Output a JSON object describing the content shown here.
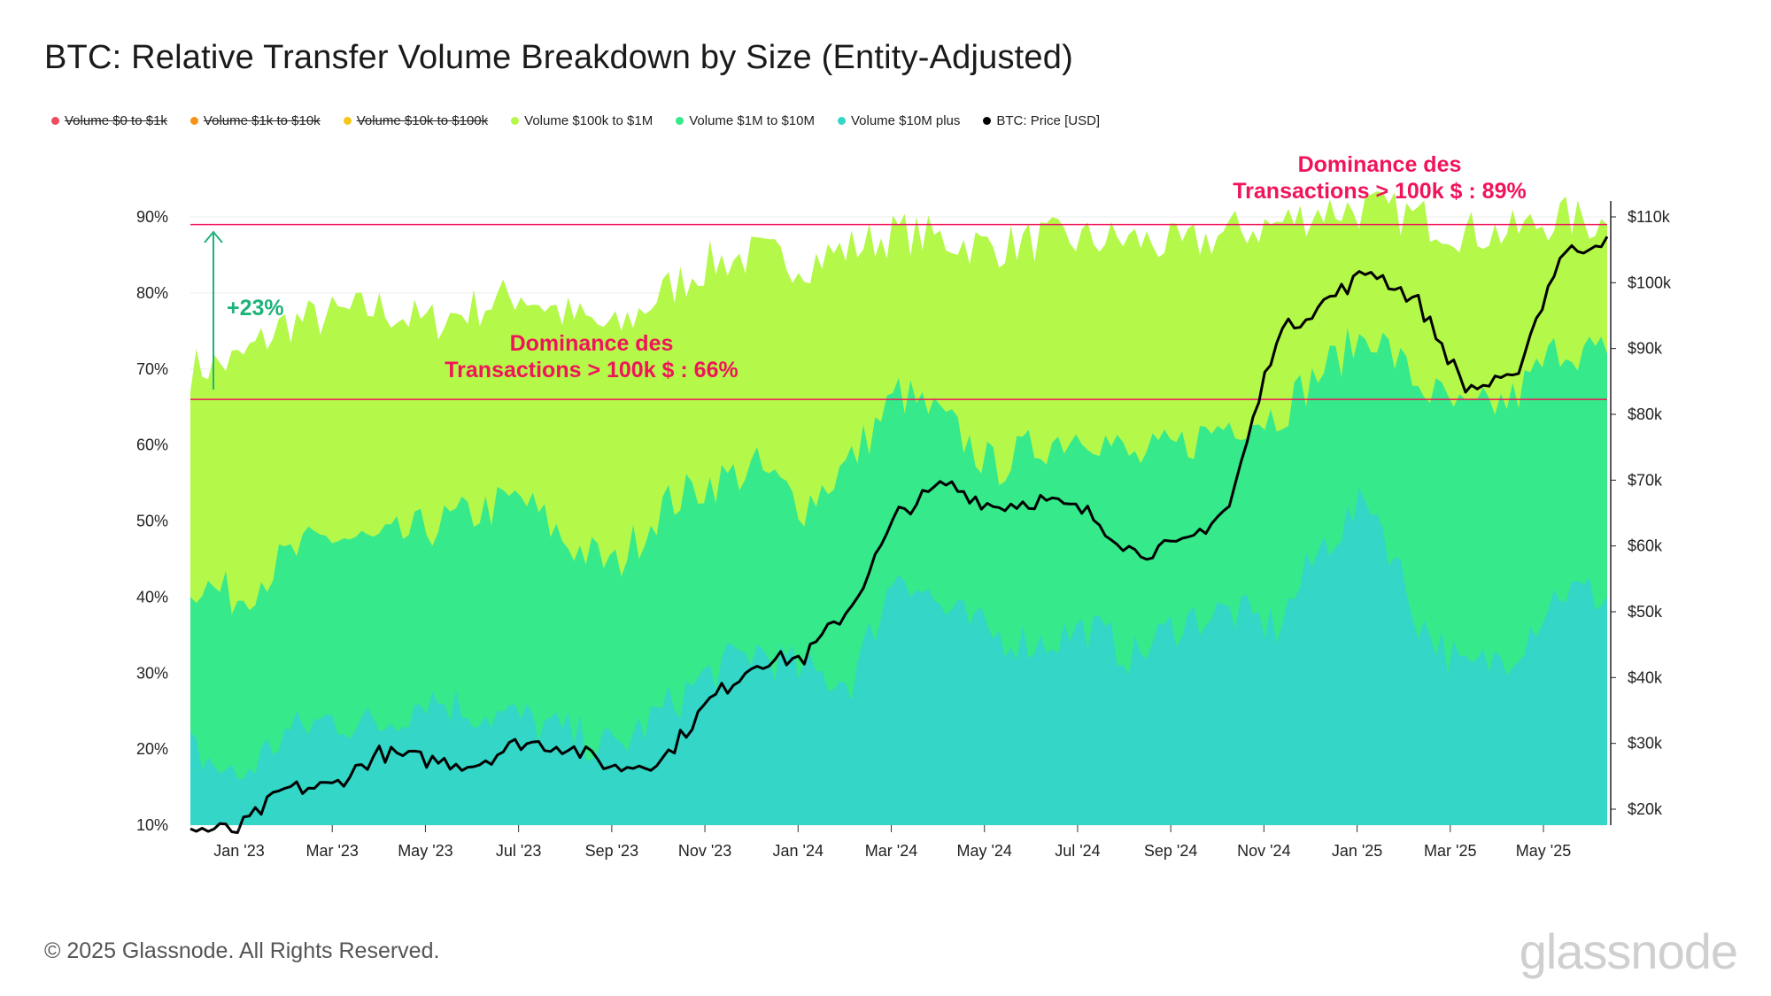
{
  "title": "BTC: Relative Transfer Volume Breakdown by Size (Entity-Adjusted)",
  "legend": [
    {
      "label": "Volume $0 to $1k",
      "color": "#ef4a5f",
      "enabled": false
    },
    {
      "label": "Volume $1k to $10k",
      "color": "#f7931a",
      "enabled": false
    },
    {
      "label": "Volume $10k to $100k",
      "color": "#f5c518",
      "enabled": false
    },
    {
      "label": "Volume $100k to $1M",
      "color": "#b4f84a",
      "enabled": true
    },
    {
      "label": "Volume $1M to $10M",
      "color": "#36e98a",
      "enabled": true
    },
    {
      "label": "Volume $10M plus",
      "color": "#33d6c7",
      "enabled": true
    },
    {
      "label": "BTC: Price [USD]",
      "color": "#000000",
      "enabled": true
    }
  ],
  "annotations": {
    "top_line1": "Dominance des",
    "top_line2": "Transactions > 100k $ : 89%",
    "mid_line1": "Dominance des",
    "mid_line2": "Transactions > 100k $ : 66%",
    "increase": "+23%"
  },
  "footer": "© 2025 Glassnode. All Rights Reserved.",
  "brand": "glassnode",
  "watermark": "glassnode",
  "chart_data": {
    "type": "area",
    "x_ticks": [
      "Jan '23",
      "Mar '23",
      "May '23",
      "Jul '23",
      "Sep '23",
      "Nov '23",
      "Jan '24",
      "Mar '24",
      "May '24",
      "Jul '24",
      "Sep '24",
      "Nov '24",
      "Jan '25",
      "Mar '25",
      "May '25"
    ],
    "x": [
      "Dec '22",
      "Jan '23",
      "Feb '23",
      "Mar '23",
      "Apr '23",
      "May '23",
      "Jun '23",
      "Jul '23",
      "Aug '23",
      "Sep '23",
      "Oct '23",
      "Nov '23",
      "Dec '23",
      "Jan '24",
      "Feb '24",
      "Mar '24",
      "Apr '24",
      "May '24",
      "Jun '24",
      "Jul '24",
      "Aug '24",
      "Sep '24",
      "Oct '24",
      "Nov '24",
      "Dec '24",
      "Jan '25",
      "Feb '25",
      "Mar '25",
      "Apr '25",
      "May '25",
      "Jun '25"
    ],
    "y_left_ticks": [
      "10%",
      "20%",
      "30%",
      "40%",
      "50%",
      "60%",
      "70%",
      "80%",
      "90%"
    ],
    "y_left_range": [
      10,
      90
    ],
    "y_right_ticks": [
      "$20k",
      "$30k",
      "$40k",
      "$50k",
      "$60k",
      "$70k",
      "$80k",
      "$90k",
      "$100k",
      "$110k"
    ],
    "y_right_range": [
      20000,
      110000
    ],
    "series": [
      {
        "name": "Volume $10M plus",
        "color": "#33d6c7",
        "values": [
          20,
          16,
          22,
          24,
          23,
          27,
          25,
          24,
          22,
          20,
          25,
          30,
          33,
          30,
          29,
          44,
          38,
          35,
          34,
          36,
          32,
          37,
          38,
          36,
          47,
          53,
          37,
          30,
          33,
          41,
          40
        ]
      },
      {
        "name": "Volume $1M to $10M",
        "color": "#36e98a",
        "values": [
          42,
          40,
          45,
          48,
          47,
          49,
          51,
          53,
          47,
          44,
          52,
          55,
          57,
          52,
          58,
          67,
          63,
          57,
          60,
          62,
          58,
          60,
          63,
          64,
          70,
          75,
          68,
          64,
          66,
          73,
          72
        ]
      },
      {
        "name": "Volume $100k to $1M",
        "color": "#b4f84a",
        "values": [
          70,
          71,
          76,
          77,
          78,
          76,
          78,
          80,
          77,
          75,
          80,
          84,
          85,
          84,
          86,
          88,
          87,
          86,
          87,
          87,
          87,
          86,
          88,
          89,
          91,
          91,
          90,
          88,
          88,
          90,
          89
        ]
      },
      {
        "name": "BTC: Price [USD]",
        "color": "#000000",
        "values": [
          16900,
          16800,
          23000,
          23500,
          28500,
          27500,
          26800,
          30200,
          29500,
          26200,
          27500,
          36500,
          42500,
          43000,
          51000,
          65000,
          69500,
          66000,
          67000,
          65000,
          59000,
          60000,
          66000,
          92000,
          97000,
          102000,
          97000,
          84000,
          85000,
          104000,
          107000
        ]
      }
    ],
    "horizontal_lines": [
      89,
      66
    ],
    "grid": true
  }
}
